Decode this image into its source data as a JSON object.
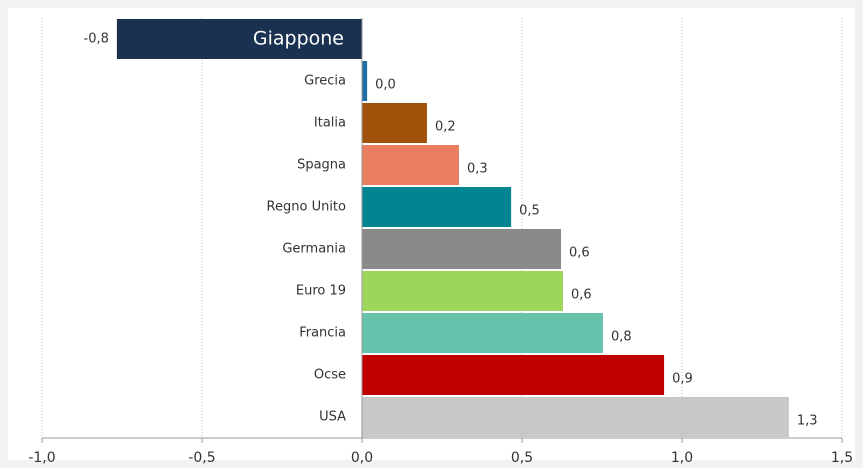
{
  "chart_data": {
    "type": "bar",
    "orientation": "horizontal",
    "categories": [
      "Giappone",
      "Grecia",
      "Italia",
      "Spagna",
      "Regno Unito",
      "Germania",
      "Euro 19",
      "Francia",
      "Ocse",
      "USA"
    ],
    "values": [
      -0.766,
      0.016,
      0.203,
      0.303,
      0.466,
      0.622,
      0.628,
      0.753,
      0.944,
      1.334
    ],
    "value_labels": [
      "-0,8",
      "0,0",
      "0,2",
      "0,3",
      "0,5",
      "0,6",
      "0,6",
      "0,8",
      "0,9",
      "1,3"
    ],
    "colors": [
      "#1b3151",
      "#1f6ea8",
      "#a0520a",
      "#e87d5f",
      "#008591",
      "#8a8a8a",
      "#9ed65c",
      "#68c3ad",
      "#c00000",
      "#c8c8c8"
    ],
    "xlim": [
      -1,
      1.5
    ],
    "xticks": [
      {
        "value": -1,
        "label": "-1,0"
      },
      {
        "value": -0.5,
        "label": "-0,5"
      },
      {
        "value": 0,
        "label": "0,0"
      },
      {
        "value": 0.5,
        "label": "0,5"
      },
      {
        "value": 1,
        "label": "1,0"
      },
      {
        "value": 1.5,
        "label": "1,5"
      }
    ],
    "grid": true
  }
}
